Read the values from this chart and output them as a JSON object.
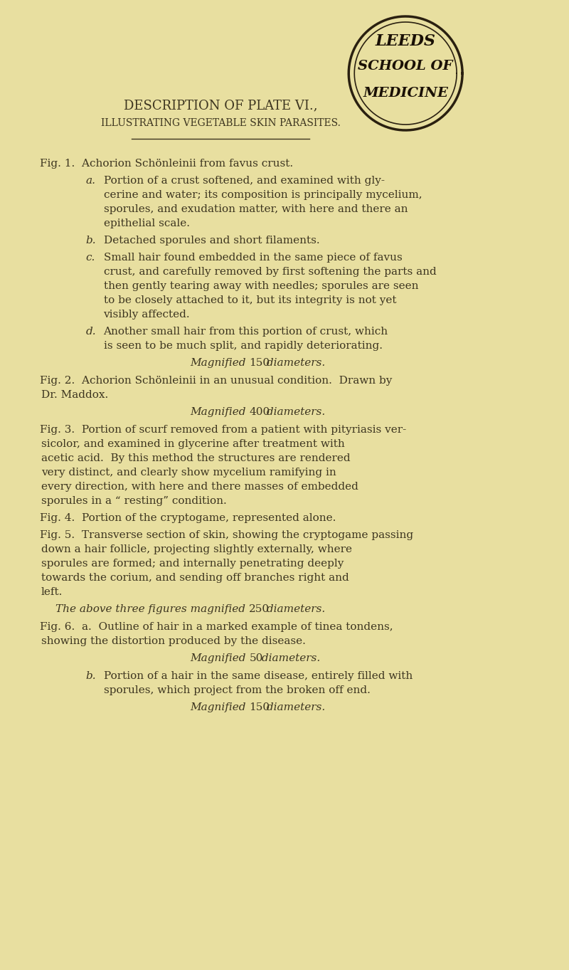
{
  "bg_color": "#e8dfa0",
  "text_color": "#3d3520",
  "title1": "DESCRIPTION OF PLATE VI.,",
  "title2": "ILLUSTRATING VEGETABLE SKIN PARASITES.",
  "stamp_text": [
    "LEEDS",
    "SCHOOL OF",
    "MEDICINE"
  ],
  "body": [
    {
      "type": "fig_head",
      "text": "Fig. 1.  Achorion Schönleinii from favus crust."
    },
    {
      "type": "sub_a",
      "label": "a.",
      "text": "Portion of a crust softened, and examined with gly-\ncerine and water; its composition is principally mycelium,\nsporules, and exudation matter, with here and there an\nepithelial scale."
    },
    {
      "type": "sub_b",
      "label": "b.",
      "text": "Detached sporules and short filaments."
    },
    {
      "type": "sub_c",
      "label": "c.",
      "text": "Small hair found embedded in the same piece of favus\ncrust, and carefully removed by first softening the parts and\nthen gently tearing away with needles; sporules are seen\nto be closely attached to it, but its integrity is not yet\nvisibly affected."
    },
    {
      "type": "sub_d",
      "label": "d.",
      "text": "Another small hair from this portion of crust, which\nis seen to be much split, and rapidly deteriorating."
    },
    {
      "type": "italic_center",
      "text": "Magnified 150 diameters."
    },
    {
      "type": "fig_head",
      "text": "Fig. 2.  Achorion Schönleinii in an unusual condition.  Drawn by\n        Dr. Maddox."
    },
    {
      "type": "italic_center",
      "text": "Magnified 400 diameters."
    },
    {
      "type": "fig_head",
      "text": "Fig. 3.  Portion of scurf removed from a patient with pityriasis ver-\n        sicolor, and examined in glycerine after treatment with\n        acetic acid.  By this method the structures are rendered\n        very distinct, and clearly show mycelium ramifying in\n        every direction, with here and there masses of embedded\n        sporules in a “ resting” condition."
    },
    {
      "type": "fig_head",
      "text": "Fig. 4.  Portion of the cryptogame, represented alone."
    },
    {
      "type": "fig_head",
      "text": "Fig. 5.  Transverse section of skin, showing the cryptogame passing\n        down a hair follicle, projecting slightly externally, where\n        sporules are formed; and internally penetrating deeply\n        towards the corium, and sending off branches right and\n        left."
    },
    {
      "type": "italic_center",
      "text": "The above three figures magnified 250 diameters."
    },
    {
      "type": "fig6a_head",
      "text": "Fig. 6.  a.  Outline of hair in a marked example of tinea tondens,\n           showing the distortion produced by the disease."
    },
    {
      "type": "italic_center",
      "text": "Magnified 50 diameters."
    },
    {
      "type": "sub_b6",
      "label": "b.",
      "text": "Portion of a hair in the same disease, entirely filled with\nsporules, which project from the broken off end."
    },
    {
      "type": "italic_center",
      "text": "Magnified 150 diameters."
    }
  ]
}
